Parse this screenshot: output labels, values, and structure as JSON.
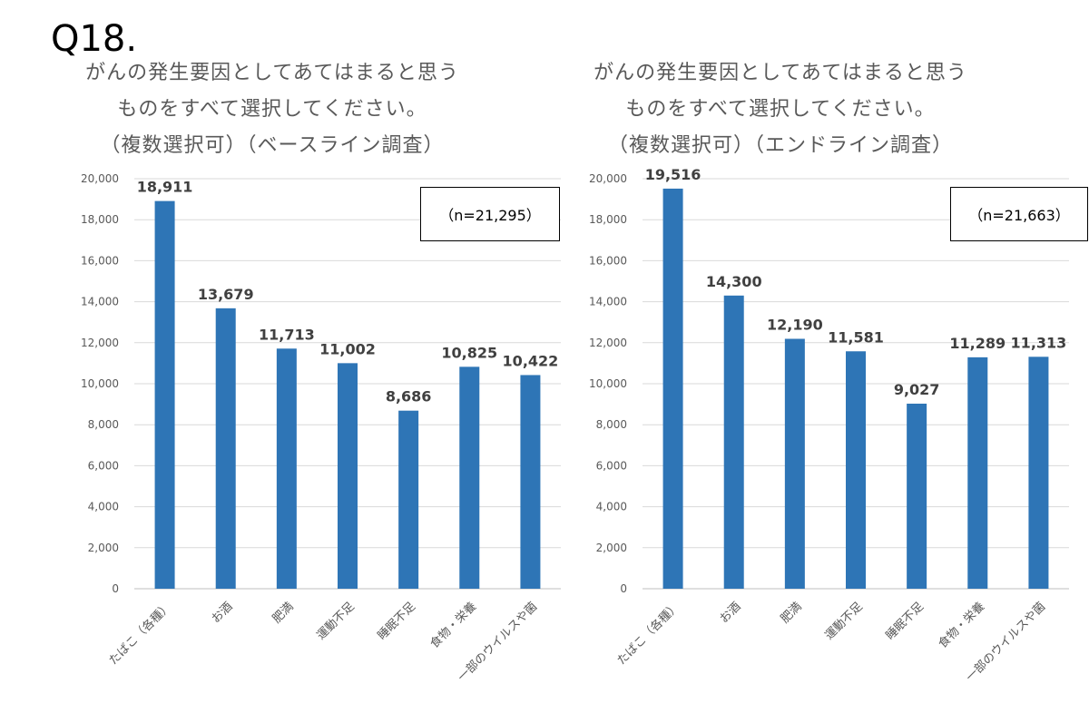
{
  "question_label": "Q18.",
  "chart_data": [
    {
      "type": "bar",
      "title_lines": [
        "がんの発生要因としてあてはまると思う",
        "ものをすべて選択してください。",
        "（複数選択可）（ベースライン調査）"
      ],
      "n_label": "（n=21,295）",
      "categories": [
        "たばこ（各種）",
        "お酒",
        "肥満",
        "運動不足",
        "睡眠不足",
        "食物・栄養",
        "一部のウイルスや菌"
      ],
      "values": [
        18911,
        13679,
        11713,
        11002,
        8686,
        10825,
        10422
      ],
      "value_labels": [
        "18,911",
        "13,679",
        "11,713",
        "11,002",
        "8,686",
        "10,825",
        "10,422"
      ],
      "ylim": [
        0,
        20000
      ],
      "yticks": [
        "0",
        "2,000",
        "4,000",
        "6,000",
        "8,000",
        "10,000",
        "12,000",
        "14,000",
        "16,000",
        "18,000",
        "20,000"
      ],
      "bar_color": "#2E75B6",
      "grid": true
    },
    {
      "type": "bar",
      "title_lines": [
        "がんの発生要因としてあてはまると思う",
        "ものをすべて選択してください。",
        "（複数選択可）（エンドライン調査）"
      ],
      "n_label": "（n=21,663）",
      "categories": [
        "たばこ（各種）",
        "お酒",
        "肥満",
        "運動不足",
        "睡眠不足",
        "食物・栄養",
        "一部のウイルスや菌"
      ],
      "values": [
        19516,
        14300,
        12190,
        11581,
        9027,
        11289,
        11313
      ],
      "value_labels": [
        "19,516",
        "14,300",
        "12,190",
        "11,581",
        "9,027",
        "11,289",
        "11,313"
      ],
      "ylim": [
        0,
        20000
      ],
      "yticks": [
        "0",
        "2,000",
        "4,000",
        "6,000",
        "8,000",
        "10,000",
        "12,000",
        "14,000",
        "16,000",
        "18,000",
        "20,000"
      ],
      "bar_color": "#2E75B6",
      "grid": true
    }
  ]
}
